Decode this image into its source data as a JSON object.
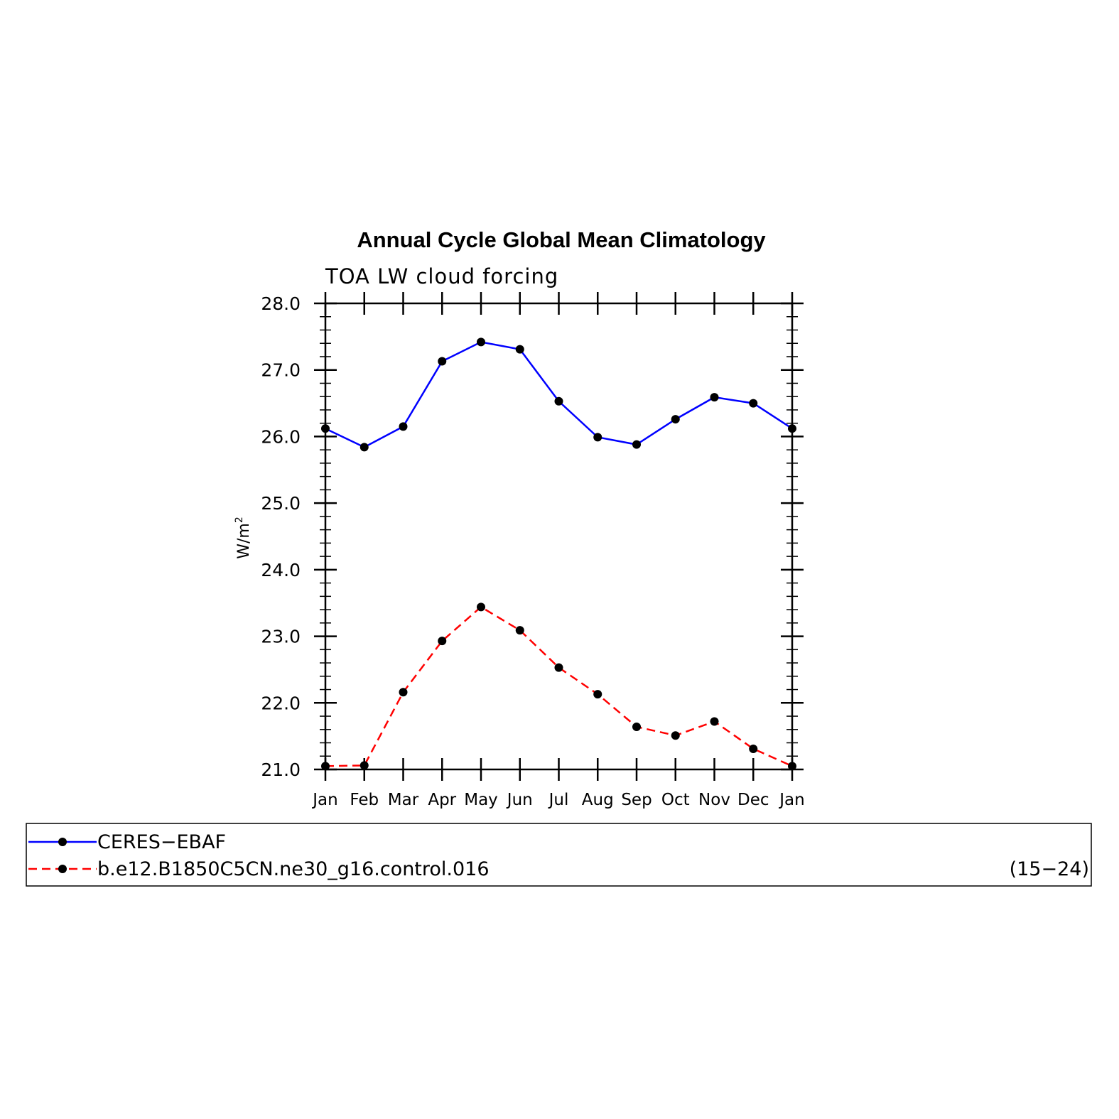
{
  "chart_data": {
    "type": "line",
    "title": "Annual Cycle Global Mean Climatology",
    "subtitle": "TOA LW cloud forcing",
    "ylabel_base": "W/m",
    "ylabel_sup": "2",
    "ylim": [
      21.0,
      28.0
    ],
    "yticks": [
      "21.0",
      "22.0",
      "23.0",
      "24.0",
      "25.0",
      "26.0",
      "27.0",
      "28.0"
    ],
    "categories": [
      "Jan",
      "Feb",
      "Mar",
      "Apr",
      "May",
      "Jun",
      "Jul",
      "Aug",
      "Sep",
      "Oct",
      "Nov",
      "Dec",
      "Jan"
    ],
    "series": [
      {
        "name": "CERES−EBAF",
        "color": "#0000ff",
        "dash": "solid",
        "values": [
          26.12,
          25.84,
          26.15,
          27.13,
          27.42,
          27.31,
          26.53,
          25.99,
          25.88,
          26.26,
          26.59,
          26.5,
          26.12
        ]
      },
      {
        "name": "b.e12.B1850C5CN.ne30_g16.control.016",
        "color": "#ff0000",
        "dash": "dashed",
        "values": [
          21.05,
          21.06,
          22.16,
          22.93,
          23.44,
          23.09,
          22.53,
          22.13,
          21.64,
          21.51,
          21.72,
          21.31,
          21.05
        ]
      }
    ],
    "legend_note": "(15−24)",
    "legend_placement": "bottom",
    "grid": false
  }
}
